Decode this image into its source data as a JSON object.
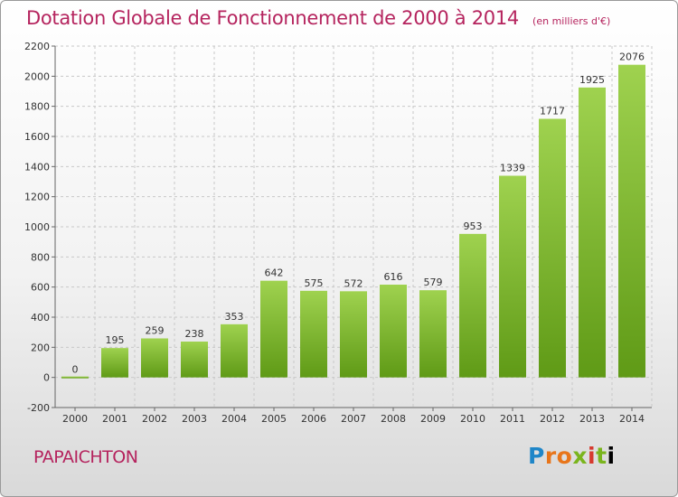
{
  "header": {
    "title": "Dotation Globale de Fonctionnement de 2000 à 2014",
    "unit": "(en milliers d'€)"
  },
  "footer": {
    "commune": "PAPAICHTON",
    "logo_text": "Proxiti"
  },
  "colors": {
    "title": "#b5245e",
    "bar_light": "#9fd24f",
    "bar_dark": "#5f9a16",
    "grid": "#c8c8c8"
  },
  "chart_data": {
    "type": "bar",
    "title": "Dotation Globale de Fonctionnement de 2000 à 2014",
    "subtitle": "(en milliers d'€)",
    "categories": [
      "2000",
      "2001",
      "2002",
      "2003",
      "2004",
      "2005",
      "2006",
      "2007",
      "2008",
      "2009",
      "2010",
      "2011",
      "2012",
      "2013",
      "2014"
    ],
    "values": [
      0,
      195,
      259,
      238,
      353,
      642,
      575,
      572,
      616,
      579,
      953,
      1339,
      1717,
      1925,
      2076
    ],
    "ylim": [
      -200,
      2200
    ],
    "yticks": [
      -200,
      0,
      200,
      400,
      600,
      800,
      1000,
      1200,
      1400,
      1600,
      1800,
      2000,
      2200
    ],
    "grid": true,
    "xlabel": "",
    "ylabel": ""
  }
}
